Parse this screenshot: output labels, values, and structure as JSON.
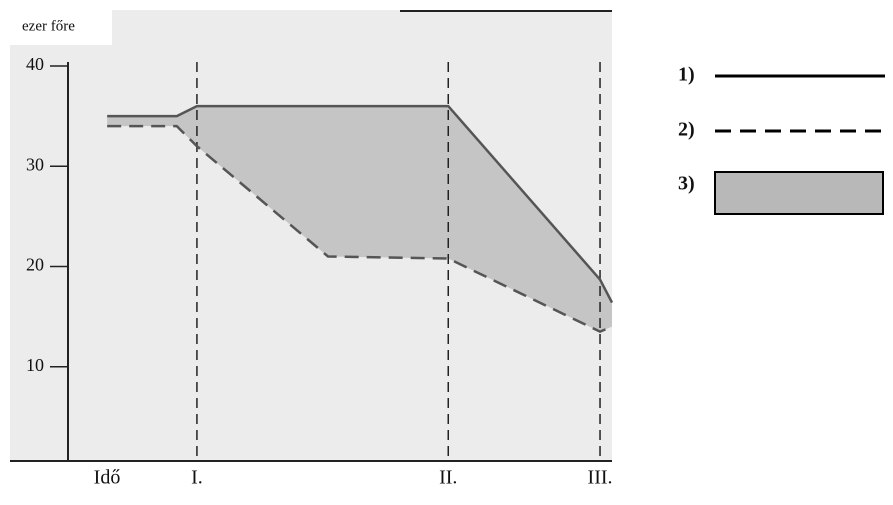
{
  "chart_data": {
    "type": "line",
    "y_label": "ezer főre",
    "x_label": "Idő",
    "x": [
      7.2,
      20,
      23.7,
      47.8,
      69.9,
      97.8,
      100
    ],
    "xlim": [
      0,
      100
    ],
    "xticks": [
      {
        "value": 23.7,
        "label": "I."
      },
      {
        "value": 69.9,
        "label": "II."
      },
      {
        "value": 97.8,
        "label": "III."
      }
    ],
    "ylim": [
      0.6,
      40.4
    ],
    "yticks": [
      10,
      20,
      30,
      40
    ],
    "series": [
      {
        "name": "1)",
        "color": "#555555",
        "dashed": false,
        "values": [
          35,
          35,
          36,
          36,
          36,
          18.7,
          16.4
        ]
      },
      {
        "name": "2)",
        "color": "#555555",
        "dashed": true,
        "values": [
          34,
          34,
          32,
          21,
          20.8,
          13.5,
          14
        ]
      }
    ],
    "area": {
      "name": "3)",
      "color": "#b8b8b8"
    }
  }
}
